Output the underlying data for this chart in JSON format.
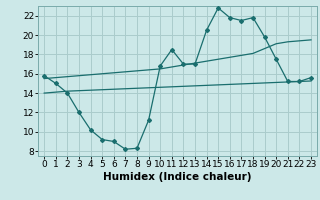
{
  "xlabel": "Humidex (Indice chaleur)",
  "xlim": [
    -0.5,
    23.5
  ],
  "ylim": [
    7.5,
    23.0
  ],
  "yticks": [
    8,
    10,
    12,
    14,
    16,
    18,
    20,
    22
  ],
  "xticks": [
    0,
    1,
    2,
    3,
    4,
    5,
    6,
    7,
    8,
    9,
    10,
    11,
    12,
    13,
    14,
    15,
    16,
    17,
    18,
    19,
    20,
    21,
    22,
    23
  ],
  "bg_color": "#cce8e8",
  "grid_color": "#aacccc",
  "line_color": "#1a6e6e",
  "line1_x": [
    0,
    1,
    2,
    3,
    4,
    5,
    6,
    7,
    8,
    9,
    10,
    11,
    12,
    13,
    14,
    15,
    16,
    17,
    18,
    19,
    20,
    21,
    22,
    23
  ],
  "line1_y": [
    15.8,
    15.0,
    14.0,
    12.0,
    10.2,
    9.2,
    9.0,
    8.2,
    8.3,
    11.2,
    16.8,
    18.5,
    17.0,
    17.0,
    20.5,
    22.8,
    21.8,
    21.5,
    21.8,
    19.8,
    17.5,
    15.2,
    15.2,
    15.6
  ],
  "line2_x": [
    0,
    1,
    2,
    3,
    4,
    5,
    6,
    7,
    8,
    9,
    10,
    11,
    12,
    13,
    14,
    15,
    16,
    17,
    18,
    19,
    20,
    21,
    22,
    23
  ],
  "line2_y": [
    15.5,
    15.6,
    15.7,
    15.8,
    15.9,
    16.0,
    16.1,
    16.2,
    16.3,
    16.4,
    16.5,
    16.7,
    16.9,
    17.1,
    17.3,
    17.5,
    17.7,
    17.9,
    18.1,
    18.6,
    19.1,
    19.3,
    19.4,
    19.5
  ],
  "line3_x": [
    0,
    1,
    2,
    3,
    4,
    5,
    6,
    7,
    8,
    9,
    10,
    11,
    12,
    13,
    14,
    15,
    16,
    17,
    18,
    19,
    20,
    21,
    22,
    23
  ],
  "line3_y": [
    14.0,
    14.1,
    14.2,
    14.25,
    14.3,
    14.35,
    14.4,
    14.45,
    14.5,
    14.55,
    14.6,
    14.65,
    14.7,
    14.75,
    14.8,
    14.85,
    14.9,
    14.95,
    15.0,
    15.05,
    15.1,
    15.15,
    15.2,
    15.25
  ],
  "marker": "D",
  "marker_size": 2.0,
  "linewidth": 0.9,
  "font_size": 6.5,
  "xlabel_fontsize": 7.5
}
